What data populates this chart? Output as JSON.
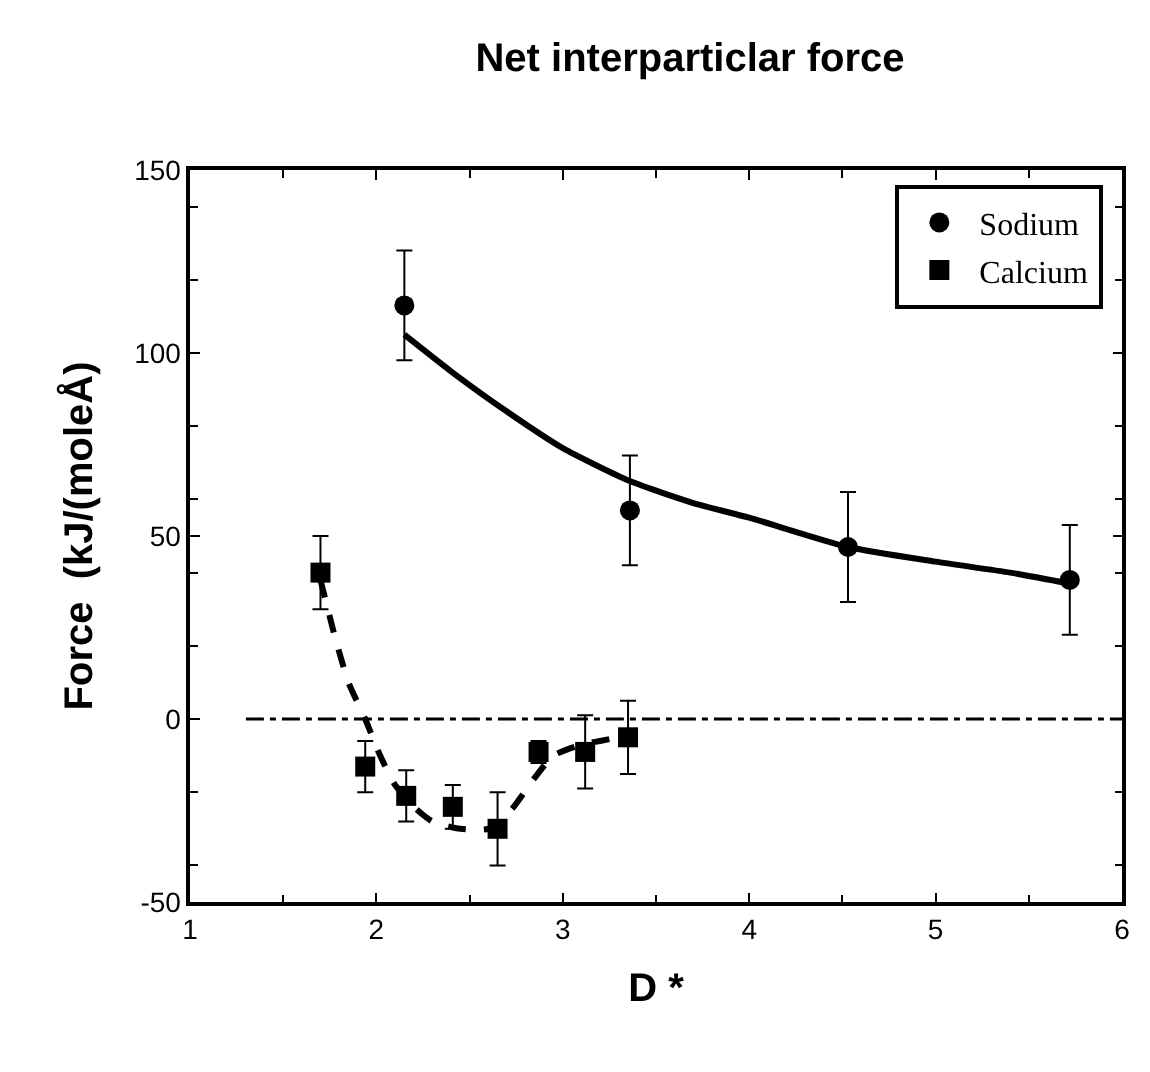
{
  "chart_data": {
    "type": "scatter",
    "title": "Net interparticlar force",
    "xlabel": "D *",
    "ylabel": "Force  (kJ/(moleÅ)",
    "xlim": [
      1,
      6
    ],
    "xticks": [
      1,
      2,
      3,
      4,
      5,
      6
    ],
    "ylim": [
      -50,
      150
    ],
    "yticks": [
      -50,
      0,
      50,
      100,
      150
    ],
    "legend": "top right",
    "series": [
      {
        "name": "Sodium",
        "marker": "circle",
        "color": "#000000",
        "x": [
          2.15,
          3.36,
          4.53,
          5.72
        ],
        "values": [
          113,
          57,
          47,
          38
        ],
        "errors": [
          15,
          15,
          15,
          15
        ]
      },
      {
        "name": "Calcium",
        "marker": "square",
        "color": "#000000",
        "x": [
          1.7,
          1.94,
          2.16,
          2.41,
          2.65,
          2.87,
          3.12,
          3.35
        ],
        "values": [
          40,
          -13,
          -21,
          -24,
          -30,
          -9,
          -9,
          -5
        ],
        "errors": [
          10,
          7,
          7,
          6,
          10,
          3,
          10,
          10
        ]
      },
      {
        "type": "line",
        "line_style": "solid",
        "marker": "none",
        "color": "#000000",
        "x": [
          2.15,
          2.4,
          2.7,
          3.0,
          3.36,
          3.7,
          4.0,
          4.53,
          5.0,
          5.4,
          5.72
        ],
        "values": [
          105,
          95,
          84,
          74,
          65,
          59,
          55,
          47,
          43,
          40,
          37
        ]
      },
      {
        "type": "line",
        "line_style": "dashed",
        "marker": "none",
        "color": "#000000",
        "x": [
          1.7,
          1.78,
          1.85,
          1.94,
          2.02,
          2.1,
          2.2,
          2.3,
          2.45,
          2.6,
          2.72,
          2.85,
          2.95,
          3.1,
          3.2,
          3.3
        ],
        "values": [
          38,
          22,
          10,
          0,
          -10,
          -18,
          -24,
          -28,
          -30,
          -30,
          -25,
          -16,
          -10,
          -7,
          -6,
          -5
        ]
      }
    ],
    "ref_lines": [
      {
        "axis": "y",
        "value": 0,
        "line_style": "dashed",
        "color": "#000000"
      }
    ]
  }
}
